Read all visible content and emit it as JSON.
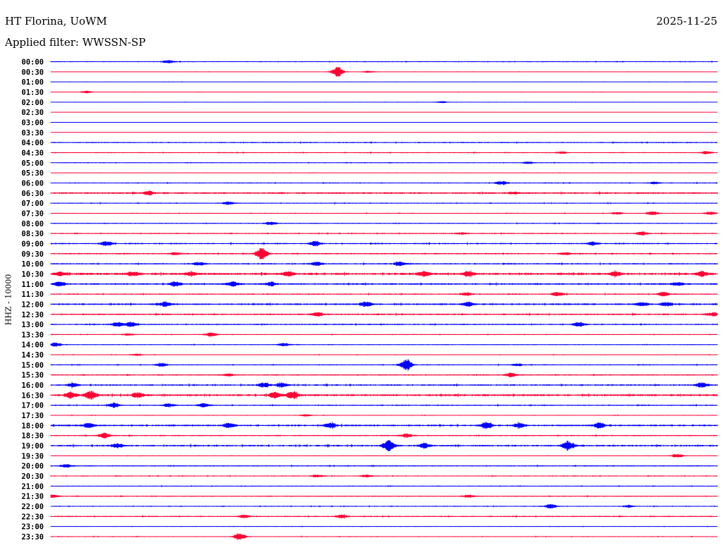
{
  "header": {
    "station": "HT Florina, UoWM",
    "date": "2025-11-25",
    "filter": "Applied filter: WWSSN-SP"
  },
  "chart_data": {
    "type": "line",
    "title": "HT Florina, UoWM",
    "ylabel": "HHZ - 10000",
    "xlabel": "",
    "x_unit": "minutes",
    "xlim": [
      0,
      30
    ],
    "colors": [
      "#0000ff",
      "#ff0033"
    ],
    "rows": [
      {
        "label": "00:00",
        "noise": 0.6,
        "events": [
          [
            5.3,
            2.0
          ]
        ]
      },
      {
        "label": "00:30",
        "noise": 0.3,
        "events": [
          [
            12.9,
            7.0
          ],
          [
            14.3,
            1.2
          ]
        ]
      },
      {
        "label": "01:00",
        "noise": 0.3,
        "events": []
      },
      {
        "label": "01:30",
        "noise": 0.3,
        "events": [
          [
            1.6,
            1.5
          ]
        ]
      },
      {
        "label": "02:00",
        "noise": 0.3,
        "events": [
          [
            17.6,
            1.2
          ]
        ]
      },
      {
        "label": "02:30",
        "noise": 0.2,
        "events": []
      },
      {
        "label": "03:00",
        "noise": 0.2,
        "events": []
      },
      {
        "label": "03:30",
        "noise": 0.2,
        "events": []
      },
      {
        "label": "04:00",
        "noise": 0.7,
        "events": []
      },
      {
        "label": "04:30",
        "noise": 0.6,
        "events": [
          [
            23.0,
            1.2
          ],
          [
            29.5,
            1.8
          ]
        ]
      },
      {
        "label": "05:00",
        "noise": 0.5,
        "events": [
          [
            21.5,
            1.3
          ]
        ]
      },
      {
        "label": "05:30",
        "noise": 0.3,
        "events": []
      },
      {
        "label": "06:00",
        "noise": 0.6,
        "events": [
          [
            20.3,
            2.5
          ],
          [
            27.2,
            1.5
          ]
        ]
      },
      {
        "label": "06:30",
        "noise": 1.0,
        "events": [
          [
            4.4,
            2.5
          ],
          [
            20.8,
            1.3
          ]
        ]
      },
      {
        "label": "07:00",
        "noise": 0.6,
        "events": [
          [
            8.0,
            2.0
          ]
        ]
      },
      {
        "label": "07:30",
        "noise": 0.5,
        "events": [
          [
            25.5,
            1.6
          ],
          [
            27.1,
            2.5
          ],
          [
            29.7,
            2.0
          ]
        ]
      },
      {
        "label": "08:00",
        "noise": 0.6,
        "events": [
          [
            9.9,
            2.0
          ]
        ]
      },
      {
        "label": "08:30",
        "noise": 0.7,
        "events": [
          [
            26.6,
            2.5
          ],
          [
            18.5,
            1.3
          ]
        ]
      },
      {
        "label": "09:00",
        "noise": 0.8,
        "events": [
          [
            2.5,
            3.0
          ],
          [
            11.9,
            3.0
          ],
          [
            24.4,
            2.5
          ]
        ]
      },
      {
        "label": "09:30",
        "noise": 0.8,
        "events": [
          [
            5.6,
            1.5
          ],
          [
            9.5,
            8.0
          ],
          [
            23.2,
            1.6
          ]
        ]
      },
      {
        "label": "10:00",
        "noise": 0.8,
        "events": [
          [
            6.7,
            2.0
          ],
          [
            12.0,
            2.5
          ],
          [
            15.7,
            2.5
          ]
        ]
      },
      {
        "label": "10:30",
        "noise": 1.3,
        "events": [
          [
            0.4,
            2.5
          ],
          [
            3.7,
            2.5
          ],
          [
            6.3,
            2.5
          ],
          [
            10.7,
            2.5
          ],
          [
            16.8,
            2.8
          ],
          [
            18.8,
            3.0
          ],
          [
            25.4,
            2.5
          ],
          [
            29.3,
            3.0
          ]
        ]
      },
      {
        "label": "11:00",
        "noise": 1.0,
        "events": [
          [
            0.4,
            3.0
          ],
          [
            5.6,
            3.0
          ],
          [
            8.2,
            3.0
          ],
          [
            9.9,
            2.5
          ],
          [
            28.2,
            2.0
          ]
        ]
      },
      {
        "label": "11:30",
        "noise": 0.7,
        "events": [
          [
            18.7,
            2.0
          ],
          [
            22.8,
            2.5
          ],
          [
            27.6,
            3.0
          ]
        ]
      },
      {
        "label": "12:00",
        "noise": 1.0,
        "events": [
          [
            5.2,
            3.0
          ],
          [
            14.2,
            3.5
          ],
          [
            18.8,
            2.5
          ],
          [
            26.6,
            2.5
          ],
          [
            27.7,
            2.5
          ]
        ]
      },
      {
        "label": "12:30",
        "noise": 0.9,
        "events": [
          [
            12.0,
            2.5
          ],
          [
            29.8,
            2.5
          ]
        ]
      },
      {
        "label": "13:00",
        "noise": 0.8,
        "events": [
          [
            3.0,
            2.5
          ],
          [
            3.6,
            3.0
          ],
          [
            23.8,
            2.8
          ]
        ]
      },
      {
        "label": "13:30",
        "noise": 0.5,
        "events": [
          [
            7.2,
            2.5
          ],
          [
            3.5,
            1.5
          ]
        ]
      },
      {
        "label": "14:00",
        "noise": 0.5,
        "events": [
          [
            0.2,
            2.5
          ],
          [
            10.5,
            2.0
          ]
        ]
      },
      {
        "label": "14:30",
        "noise": 0.4,
        "events": [
          [
            3.9,
            1.5
          ]
        ]
      },
      {
        "label": "15:00",
        "noise": 0.6,
        "events": [
          [
            5.0,
            2.5
          ],
          [
            16.0,
            8.0
          ],
          [
            21.0,
            1.5
          ]
        ]
      },
      {
        "label": "15:30",
        "noise": 0.7,
        "events": [
          [
            8.0,
            1.8
          ],
          [
            20.7,
            2.5
          ]
        ]
      },
      {
        "label": "16:00",
        "noise": 0.9,
        "events": [
          [
            9.6,
            3.0
          ],
          [
            10.4,
            3.0
          ],
          [
            29.3,
            3.0
          ],
          [
            1.0,
            2.0
          ]
        ]
      },
      {
        "label": "16:30",
        "noise": 1.2,
        "events": [
          [
            0.9,
            4.0
          ],
          [
            1.8,
            5.0
          ],
          [
            3.9,
            3.5
          ],
          [
            10.1,
            4.0
          ],
          [
            10.9,
            5.0
          ]
        ]
      },
      {
        "label": "17:00",
        "noise": 0.7,
        "events": [
          [
            2.8,
            3.0
          ],
          [
            5.3,
            2.5
          ],
          [
            6.9,
            2.5
          ]
        ]
      },
      {
        "label": "17:30",
        "noise": 0.5,
        "events": [
          [
            11.5,
            1.3
          ]
        ]
      },
      {
        "label": "18:00",
        "noise": 1.0,
        "events": [
          [
            1.7,
            3.0
          ],
          [
            8.0,
            2.8
          ],
          [
            12.6,
            3.5
          ],
          [
            19.6,
            4.0
          ],
          [
            21.1,
            3.0
          ],
          [
            24.7,
            3.5
          ]
        ]
      },
      {
        "label": "18:30",
        "noise": 0.7,
        "events": [
          [
            2.4,
            3.5
          ],
          [
            16.0,
            2.5
          ]
        ]
      },
      {
        "label": "19:00",
        "noise": 1.0,
        "events": [
          [
            3.0,
            2.5
          ],
          [
            15.2,
            7.0
          ],
          [
            16.8,
            3.0
          ],
          [
            23.3,
            6.0
          ]
        ]
      },
      {
        "label": "19:30",
        "noise": 0.4,
        "events": [
          [
            28.2,
            2.5
          ]
        ]
      },
      {
        "label": "20:00",
        "noise": 0.7,
        "events": [
          [
            0.7,
            2.0
          ]
        ]
      },
      {
        "label": "20:30",
        "noise": 0.6,
        "events": [
          [
            12.0,
            1.6
          ],
          [
            14.2,
            1.5
          ]
        ]
      },
      {
        "label": "21:00",
        "noise": 0.5,
        "events": []
      },
      {
        "label": "21:30",
        "noise": 0.6,
        "events": [
          [
            0.1,
            2.0
          ],
          [
            18.8,
            1.6
          ]
        ]
      },
      {
        "label": "22:00",
        "noise": 0.6,
        "events": [
          [
            22.5,
            2.8
          ],
          [
            26.0,
            1.6
          ]
        ]
      },
      {
        "label": "22:30",
        "noise": 0.7,
        "events": [
          [
            8.7,
            2.0
          ],
          [
            13.1,
            2.2
          ]
        ]
      },
      {
        "label": "23:00",
        "noise": 0.4,
        "events": []
      },
      {
        "label": "23:30",
        "noise": 0.5,
        "events": [
          [
            8.5,
            5.0
          ]
        ]
      }
    ]
  }
}
